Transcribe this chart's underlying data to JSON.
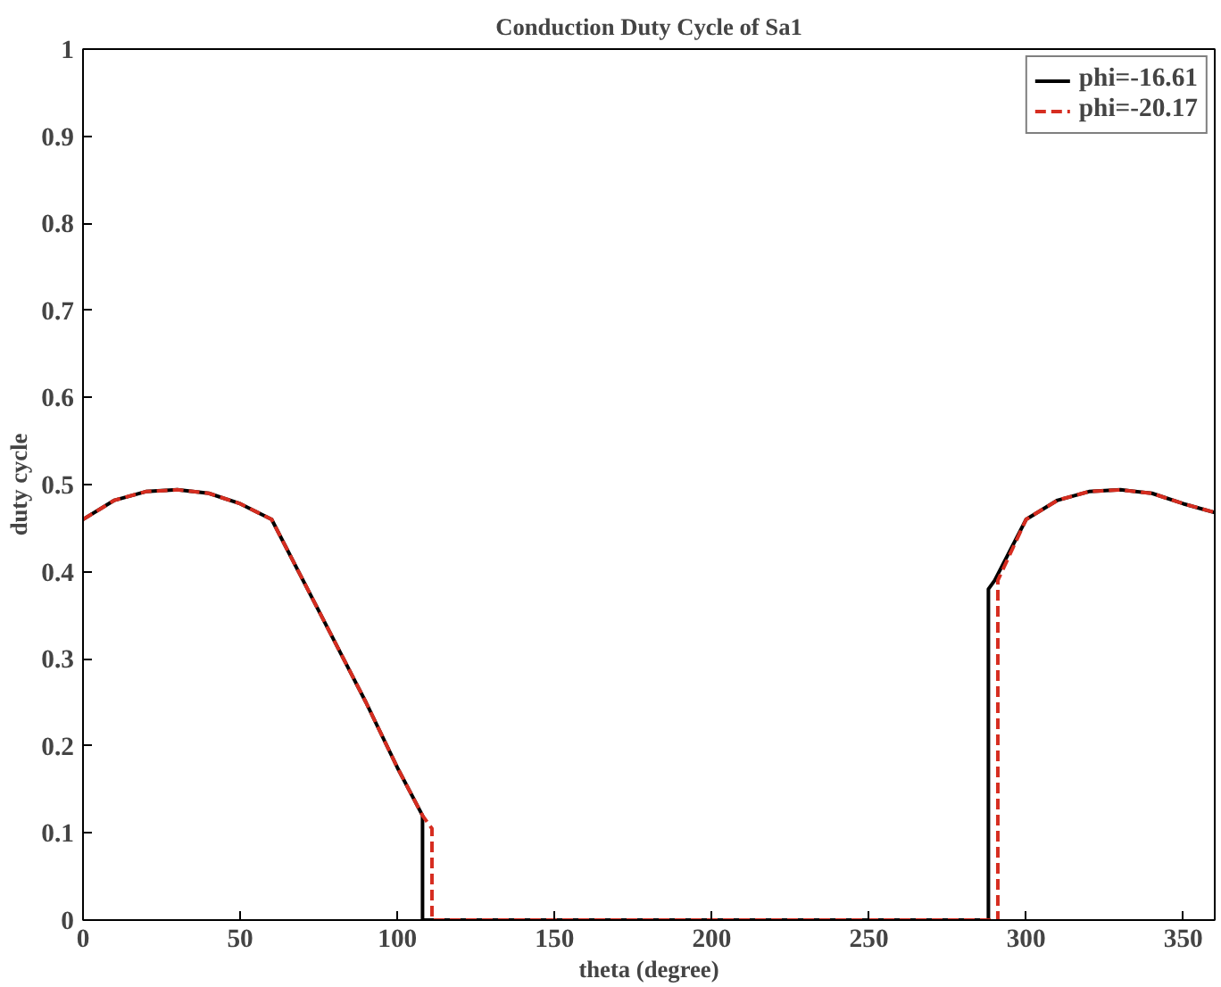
{
  "chart_data": {
    "type": "line",
    "title": "Conduction Duty Cycle of Sa1",
    "xlabel": "theta (degree)",
    "ylabel": "duty cycle",
    "xlim": [
      0,
      360
    ],
    "ylim": [
      0,
      1
    ],
    "xticks": [
      0,
      50,
      100,
      150,
      200,
      250,
      300,
      350
    ],
    "yticks": [
      0,
      0.1,
      0.2,
      0.3,
      0.4,
      0.5,
      0.6,
      0.7,
      0.8,
      0.9,
      1
    ],
    "grid": false,
    "legend": "top right",
    "series": [
      {
        "name": "phi=-16.61",
        "color": "#000000",
        "line_style": "solid",
        "x": [
          0,
          10,
          20,
          30,
          40,
          50,
          60,
          70,
          80,
          90,
          100,
          108,
          108,
          288,
          288,
          290,
          300,
          310,
          320,
          330,
          340,
          350,
          360
        ],
        "values": [
          0.46,
          0.482,
          0.492,
          0.494,
          0.49,
          0.478,
          0.46,
          0.39,
          0.32,
          0.25,
          0.175,
          0.12,
          0,
          0,
          0.38,
          0.39,
          0.46,
          0.482,
          0.492,
          0.494,
          0.49,
          0.478,
          0.468
        ]
      },
      {
        "name": "phi=-20.17",
        "color": "#d62d20",
        "line_style": "dashed",
        "x": [
          0,
          10,
          20,
          30,
          40,
          50,
          60,
          70,
          80,
          90,
          100,
          108,
          111,
          111,
          291,
          291,
          300,
          310,
          320,
          330,
          340,
          350,
          360
        ],
        "values": [
          0.46,
          0.482,
          0.492,
          0.494,
          0.49,
          0.478,
          0.46,
          0.39,
          0.32,
          0.25,
          0.175,
          0.12,
          0.105,
          0,
          0,
          0.39,
          0.46,
          0.482,
          0.492,
          0.494,
          0.49,
          0.478,
          0.468
        ]
      }
    ]
  }
}
